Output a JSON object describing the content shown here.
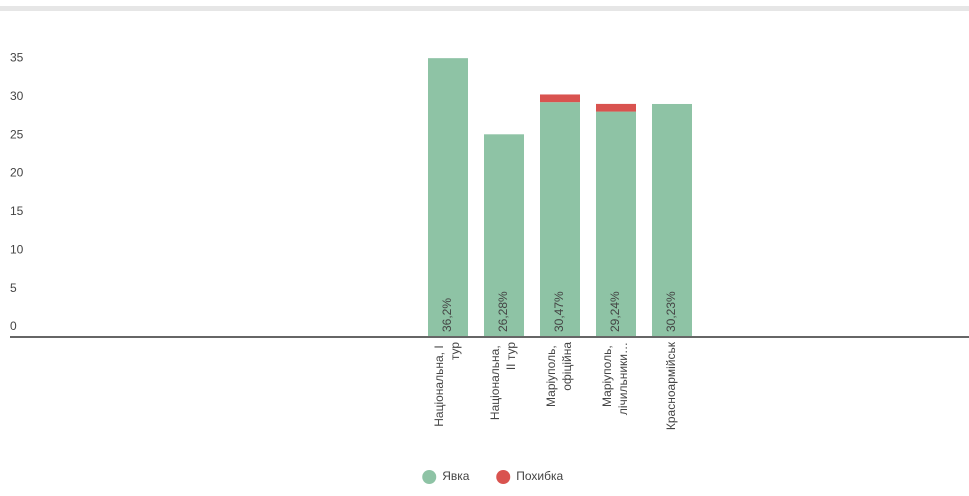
{
  "chart_data": {
    "type": "stacked-bar",
    "categories": [
      "Національна, I тур",
      "Національна, II тур",
      "Маріуполь, офіційна",
      "Маріуполь, лічильники…",
      "Красноармійськ"
    ],
    "series": [
      {
        "name": "Явка",
        "color": "#8ec3a5",
        "values": [
          36.2,
          26.28,
          30.47,
          29.24,
          30.23
        ],
        "value_labels": [
          "36,2%",
          "26,28%",
          "30,47%",
          "29,24%",
          "30,23%"
        ]
      },
      {
        "name": "Похибка",
        "color": "#d9534f",
        "values": [
          null,
          null,
          1,
          1,
          null
        ]
      }
    ],
    "ylim": [
      0,
      40
    ],
    "yticks": [
      0,
      5,
      10,
      15,
      20,
      25,
      30,
      35
    ],
    "grid": false,
    "legend": "bottom"
  }
}
